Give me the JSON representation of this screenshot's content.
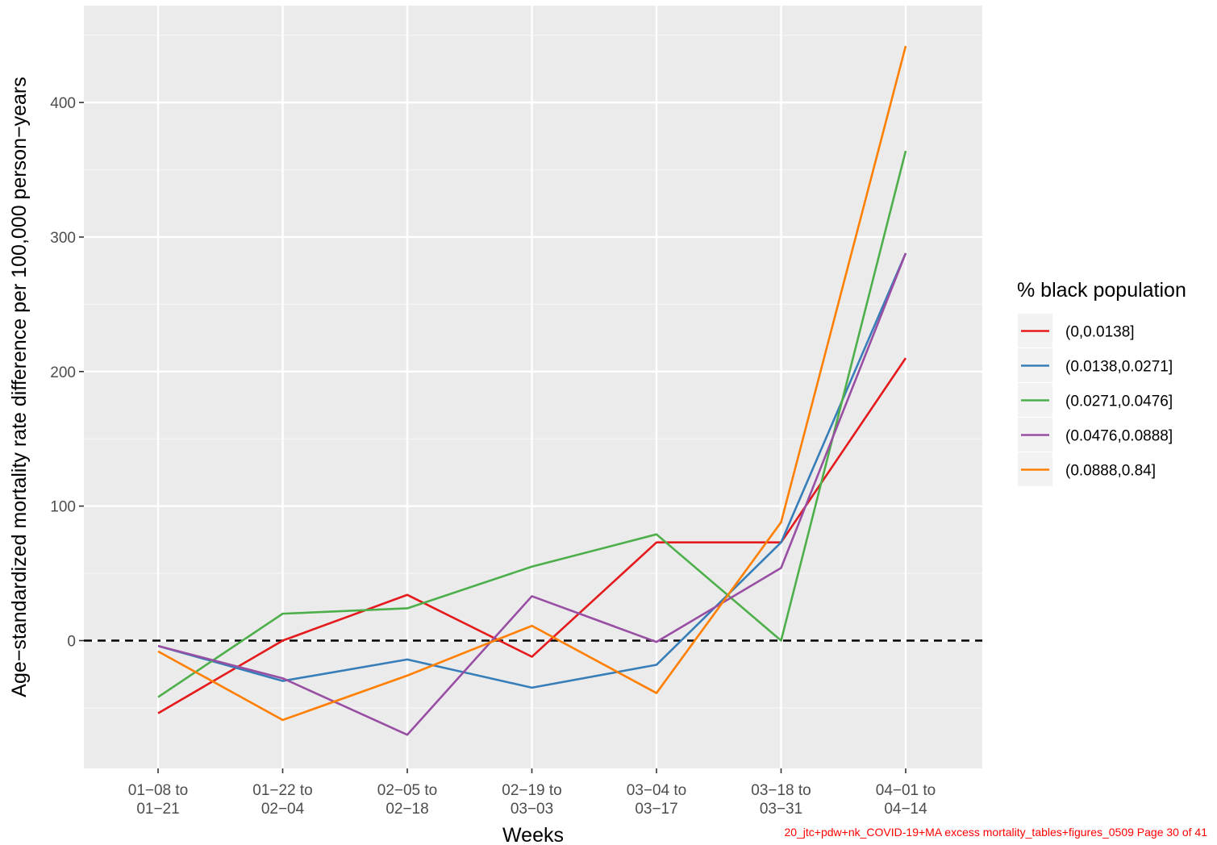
{
  "chart_data": {
    "type": "line",
    "title": "",
    "xlabel": "Weeks",
    "ylabel": "Age−standardized mortality rate difference per 100,000 person−years",
    "categories": [
      [
        "01−08 to",
        "01−21"
      ],
      [
        "01−22 to",
        "02−04"
      ],
      [
        "02−05 to",
        "02−18"
      ],
      [
        "02−19 to",
        "03−03"
      ],
      [
        "03−04 to",
        "03−17"
      ],
      [
        "03−18 to",
        "03−31"
      ],
      [
        "04−01 to",
        "04−14"
      ]
    ],
    "ylim": [
      -95,
      472
    ],
    "yticks": [
      0,
      100,
      200,
      300,
      400
    ],
    "reference_line": {
      "y": 0,
      "style": "dashed",
      "color": "#000000"
    },
    "grid": true,
    "legend_title": "% black population",
    "legend_position": "right",
    "series": [
      {
        "name": "(0,0.0138]",
        "color": "#E41A1C",
        "values": [
          -54,
          0,
          34,
          -12,
          73,
          73,
          210
        ]
      },
      {
        "name": "(0.0138,0.0271]",
        "color": "#377EB8",
        "values": [
          -4,
          -30,
          -14,
          -35,
          -18,
          73,
          288
        ]
      },
      {
        "name": "(0.0271,0.0476]",
        "color": "#4DAF4A",
        "values": [
          -42,
          20,
          24,
          55,
          79,
          0,
          364
        ]
      },
      {
        "name": "(0.0476,0.0888]",
        "color": "#984EA3",
        "values": [
          -4,
          -28,
          -70,
          33,
          -1,
          54,
          288
        ]
      },
      {
        "name": "(0.0888,0.84]",
        "color": "#FF7F00",
        "values": [
          -8,
          -59,
          -26,
          11,
          -39,
          88,
          442
        ]
      }
    ]
  },
  "footer": {
    "text": "20_jtc+pdw+nk_COVID-19+MA excess mortality_tables+figures_0509 Page 30 of 41"
  }
}
